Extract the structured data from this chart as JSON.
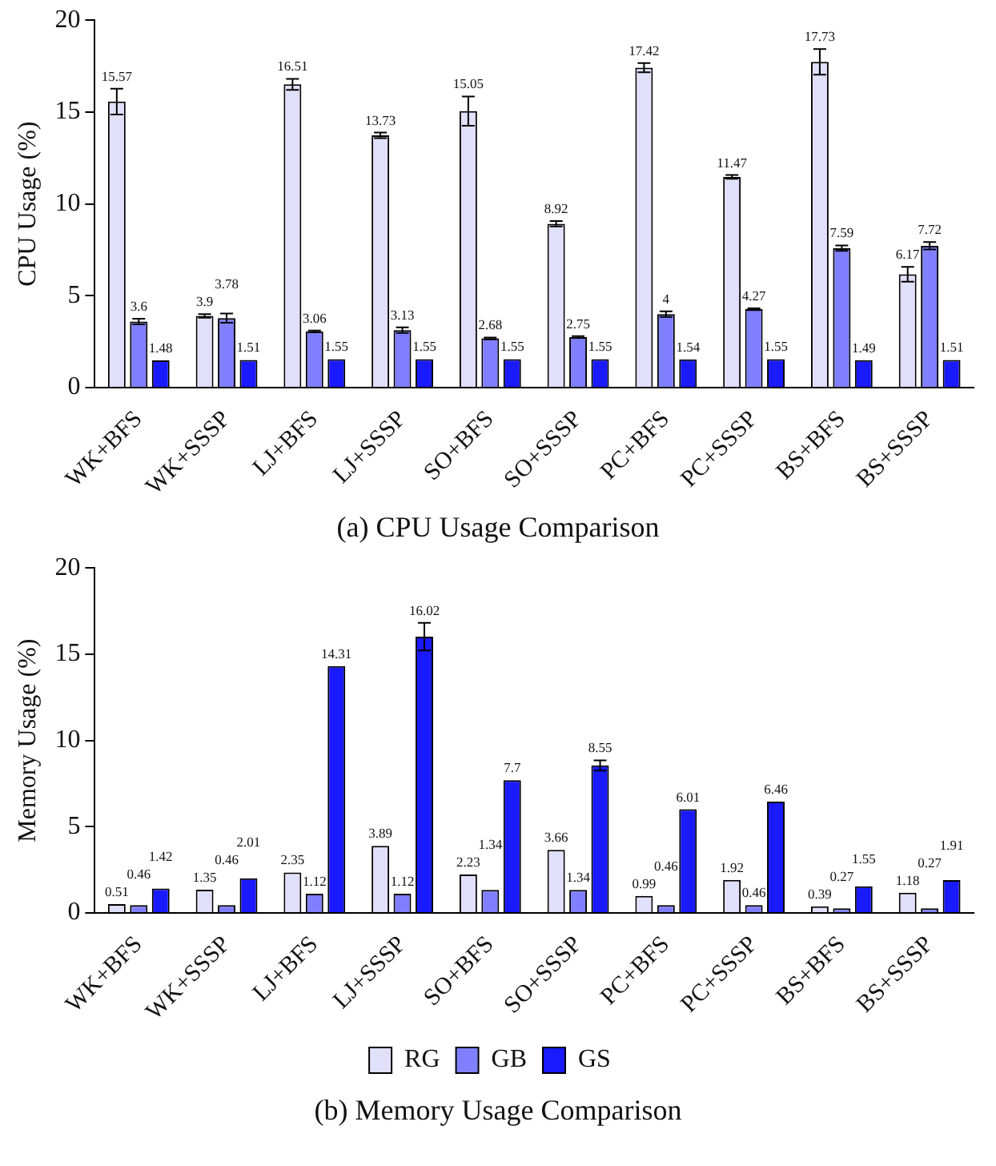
{
  "chart_data": [
    {
      "type": "bar",
      "title": "(a) CPU Usage Comparison",
      "ylabel": "CPU Usage (%)",
      "categories": [
        "WK+BFS",
        "WK+SSSP",
        "LJ+BFS",
        "LJ+SSSP",
        "SO+BFS",
        "SO+SSSP",
        "PC+BFS",
        "PC+SSSP",
        "BS+BFS",
        "BS+SSSP"
      ],
      "series": [
        {
          "color": "#e0e0fa",
          "values": [
            15.57,
            3.9,
            16.51,
            13.73,
            15.05,
            8.92,
            17.42,
            11.47,
            17.73,
            6.17
          ],
          "errors": [
            0.7,
            0.1,
            0.3,
            0.15,
            0.8,
            0.15,
            0.25,
            0.1,
            0.7,
            0.4
          ]
        },
        {
          "color": "#8080ff",
          "values": [
            3.6,
            3.78,
            3.06,
            3.13,
            2.68,
            2.75,
            4,
            4.27,
            7.59,
            7.72
          ],
          "errors": [
            0.15,
            0.25,
            0.05,
            0.15,
            0.05,
            0.05,
            0.15,
            0.05,
            0.15,
            0.2
          ]
        },
        {
          "color": "#1a1aff",
          "values": [
            1.48,
            1.51,
            1.55,
            1.55,
            1.55,
            1.55,
            1.54,
            1.55,
            1.49,
            1.51
          ],
          "errors": [
            null,
            null,
            null,
            null,
            null,
            null,
            null,
            null,
            null,
            null
          ]
        }
      ],
      "ylim": [
        0,
        20
      ],
      "yticks": [
        0,
        5,
        10,
        15,
        20
      ],
      "grid": false,
      "legend": false,
      "data_labels": true
    },
    {
      "type": "bar",
      "title": "(b) Memory Usage Comparison",
      "ylabel": "Memory Usage (%)",
      "categories": [
        "WK+BFS",
        "WK+SSSP",
        "LJ+BFS",
        "LJ+SSSP",
        "SO+BFS",
        "SO+SSSP",
        "PC+BFS",
        "PC+SSSP",
        "BS+BFS",
        "BS+SSSP"
      ],
      "series": [
        {
          "name": "RG",
          "color": "#e0e0fa",
          "values": [
            0.51,
            1.35,
            2.35,
            3.89,
            2.23,
            3.66,
            0.99,
            1.92,
            0.39,
            1.18
          ]
        },
        {
          "name": "GB",
          "color": "#8080ff",
          "values": [
            0.46,
            0.46,
            1.12,
            1.12,
            1.34,
            1.34,
            0.46,
            0.46,
            0.27,
            0.27
          ]
        },
        {
          "name": "GS",
          "color": "#1a1aff",
          "values": [
            1.42,
            2.01,
            14.31,
            16.02,
            7.7,
            8.55,
            6.01,
            6.46,
            1.55,
            1.91
          ],
          "errors": [
            null,
            null,
            null,
            0.8,
            null,
            0.3,
            null,
            null,
            null,
            null
          ]
        }
      ],
      "ylim": [
        0,
        20
      ],
      "yticks": [
        0,
        5,
        10,
        15,
        20
      ],
      "grid": false,
      "legend": "bottom",
      "data_labels": true
    }
  ]
}
